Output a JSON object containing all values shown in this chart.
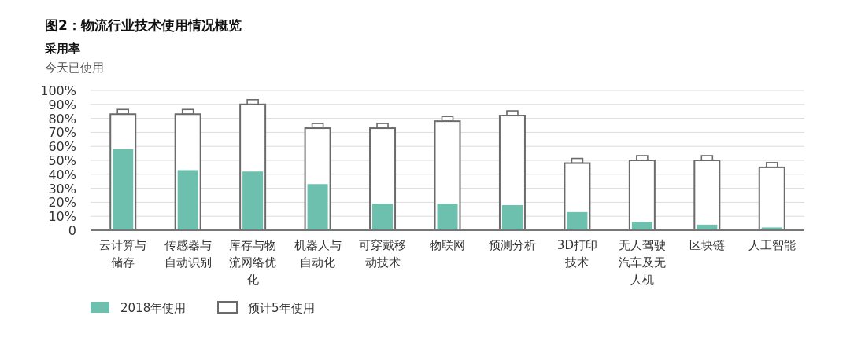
{
  "chart_data": {
    "type": "bar",
    "title": "图2：物流行业技术使用情况概览",
    "ylabel": "采用率",
    "subtitle": "今天已使用",
    "categories": [
      "云计算与储存",
      "传感器与自动识别",
      "库存与物流网络优化",
      "机器人与自动化",
      "可穿戴移动技术",
      "物联网",
      "预测分析",
      "3D打印技术",
      "无人驾驶汽车及无人机",
      "区块链",
      "人工智能"
    ],
    "series": [
      {
        "name": "预计5年使用",
        "color": "#6b6b6b",
        "values": [
          83,
          83,
          90,
          73,
          73,
          78,
          82,
          48,
          50,
          50,
          45
        ]
      },
      {
        "name": "2018年使用",
        "color": "#6cc0ad",
        "values": [
          58,
          43,
          42,
          33,
          19,
          19,
          18,
          13,
          6,
          4,
          2
        ]
      }
    ],
    "ylim": [
      0,
      100
    ],
    "yticks": [
      0,
      {
        "value": 10,
        "label": "10%"
      },
      {
        "value": 20,
        "label": "20%"
      },
      {
        "value": 30,
        "label": "30%"
      },
      {
        "value": 40,
        "label": "40%"
      },
      {
        "value": 50,
        "label": "50%"
      },
      {
        "value": 60,
        "label": "60%"
      },
      {
        "value": 70,
        "label": "70%"
      },
      {
        "value": 80,
        "label": "80%"
      },
      {
        "value": 90,
        "label": "90%"
      },
      {
        "value": 100,
        "label": "100%"
      }
    ],
    "grid": "y",
    "legend": "bottom left"
  }
}
